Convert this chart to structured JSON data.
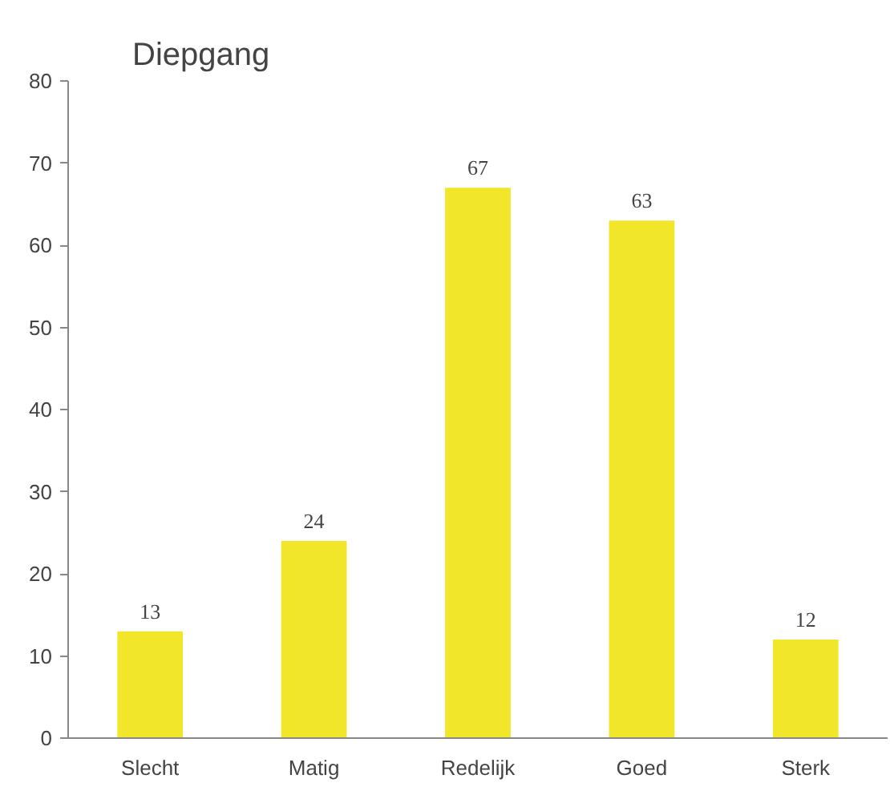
{
  "chart_data": {
    "type": "bar",
    "title": "Diepgang",
    "categories": [
      "Slecht",
      "Matig",
      "Redelijk",
      "Goed",
      "Sterk"
    ],
    "values": [
      13,
      24,
      67,
      63,
      12
    ],
    "color": "#f2e62a",
    "ylim": [
      0,
      80
    ],
    "yticks": [
      0,
      10,
      20,
      30,
      40,
      50,
      60,
      70,
      80
    ],
    "data_labels": true,
    "grid": false
  }
}
